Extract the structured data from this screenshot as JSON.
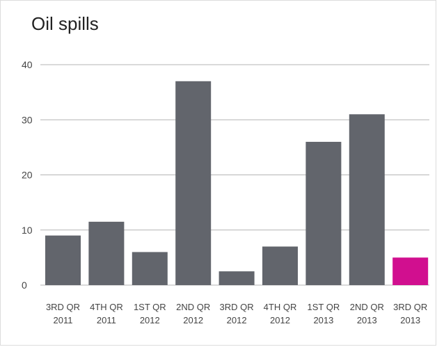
{
  "chart_data": {
    "type": "bar",
    "title": "Oil spills",
    "xlabel": "",
    "ylabel": "",
    "ylim": [
      0,
      40
    ],
    "yticks": [
      0,
      10,
      20,
      30,
      40
    ],
    "grid": true,
    "categories": [
      [
        "3RD QR",
        "2011"
      ],
      [
        "4TH QR",
        "2011"
      ],
      [
        "1ST QR",
        "2012"
      ],
      [
        "2ND QR",
        "2012"
      ],
      [
        "3RD QR",
        "2012"
      ],
      [
        "4TH QR",
        "2012"
      ],
      [
        "1ST QR",
        "2013"
      ],
      [
        "2ND QR",
        "2013"
      ],
      [
        "3RD QR",
        "2013"
      ]
    ],
    "values": [
      9,
      11.5,
      6,
      37,
      2.5,
      7,
      26,
      31,
      5
    ],
    "highlight_index": 8,
    "colors": {
      "bar": "#62656c",
      "highlight": "#d10f8f",
      "grid": "#b4b4b4"
    }
  }
}
